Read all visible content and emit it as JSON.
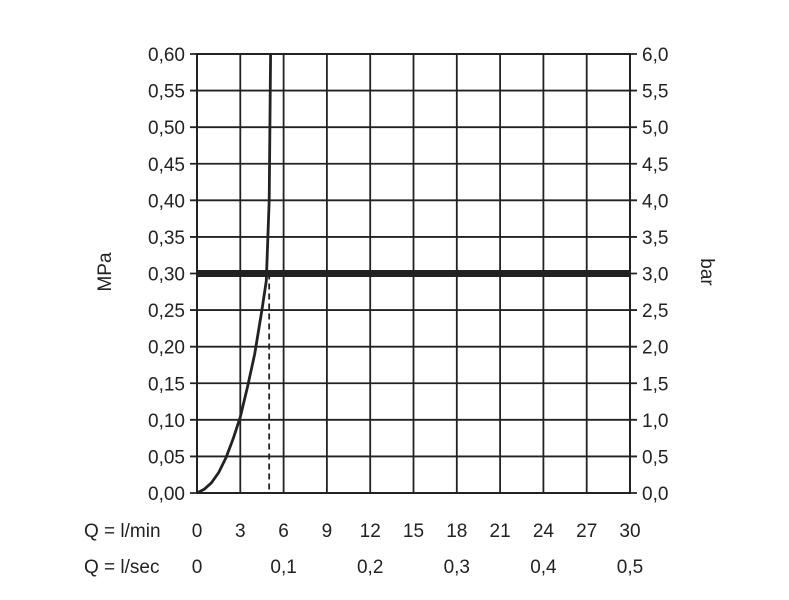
{
  "chart_data": {
    "type": "line",
    "ylabel_left": "MPa",
    "ylabel_right": "bar",
    "x_row_label_lmin": "Q = l/min",
    "x_row_label_lsec": "Q = l/sec",
    "xlim": [
      0,
      30
    ],
    "ylim": [
      0,
      0.6
    ],
    "grid": true,
    "x_ticks_lmin": [
      "0",
      "3",
      "6",
      "9",
      "12",
      "15",
      "18",
      "21",
      "24",
      "27",
      "30"
    ],
    "x_ticks_lsec": [
      {
        "x": 0,
        "label": "0"
      },
      {
        "x": 6,
        "label": "0,1"
      },
      {
        "x": 12,
        "label": "0,2"
      },
      {
        "x": 18,
        "label": "0,3"
      },
      {
        "x": 24,
        "label": "0,4"
      },
      {
        "x": 30,
        "label": "0,5"
      }
    ],
    "y_ticks_mpa": [
      "0,00",
      "0,05",
      "0,10",
      "0,15",
      "0,20",
      "0,25",
      "0,30",
      "0,35",
      "0,40",
      "0,45",
      "0,50",
      "0,55",
      "0,60"
    ],
    "y_ticks_bar": [
      "0,0",
      "0,5",
      "1,0",
      "1,5",
      "2,0",
      "2,5",
      "3,0",
      "3,5",
      "4,0",
      "4,5",
      "5,0",
      "5,5",
      "6,0"
    ],
    "series": [
      {
        "x": [
          0,
          0.5,
          1,
          1.5,
          2,
          2.5,
          3,
          3.5,
          4,
          4.5,
          4.8,
          5.0,
          5.1
        ],
        "y": [
          0,
          0.005,
          0.014,
          0.028,
          0.048,
          0.074,
          0.104,
          0.145,
          0.19,
          0.25,
          0.29,
          0.4,
          0.6
        ]
      }
    ],
    "reference_line_y": 0.3,
    "reference_line_x": 5.0
  }
}
